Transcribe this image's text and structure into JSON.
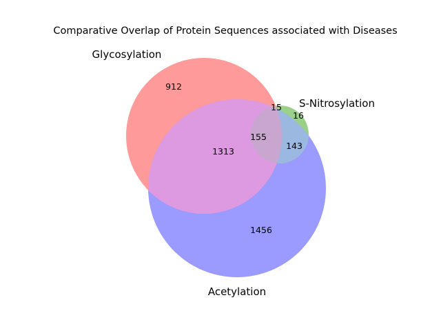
{
  "chart_data": {
    "type": "venn",
    "title": "Comparative Overlap of Protein Sequences associated with Diseases",
    "sets": [
      {
        "name": "Glycosylation",
        "color": "#ff9a9a"
      },
      {
        "name": "S-Nitrosylation",
        "color": "#9bd08a"
      },
      {
        "name": "Acetylation",
        "color": "#9a9aff"
      }
    ],
    "regions": {
      "glyco_only": "912",
      "glyco_snitro": "15",
      "snitro_only": "16",
      "glyco_acetyl": "1313",
      "all_three": "155",
      "snitro_acetyl": "143",
      "acetyl_only": "1456"
    },
    "overlap_colors": {
      "glyco_acetyl": "#de9ae0",
      "snitro_acetyl": "#9ab8e0",
      "glyco_snitro": "#d8b092",
      "all_three": "#c9a6cf"
    }
  }
}
